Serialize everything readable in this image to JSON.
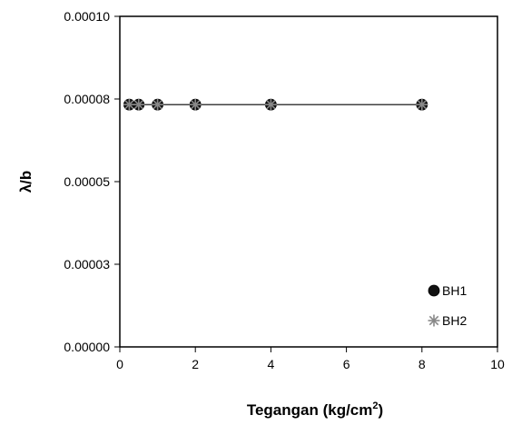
{
  "chart_data": {
    "type": "scatter",
    "title": "",
    "xlabel_main": "Tegangan (kg/cm",
    "xlabel_sup": "2",
    "xlabel_end": ")",
    "ylabel": "λ/b",
    "xlim": [
      0,
      10
    ],
    "ylim": [
      0,
      0.0001
    ],
    "x_ticks": [
      "0",
      "2",
      "4",
      "6",
      "8",
      "10"
    ],
    "y_ticks": [
      "0.00000",
      "0.00003",
      "0.00005",
      "0.00008",
      "0.00010"
    ],
    "grid": false,
    "legend_position": "bottom-right",
    "series": [
      {
        "name": "BH1",
        "marker": "circle",
        "color": "#111111",
        "line": true,
        "x": [
          0.25,
          0.5,
          1,
          2,
          4,
          8
        ],
        "y": [
          7.33e-05,
          7.33e-05,
          7.33e-05,
          7.33e-05,
          7.33e-05,
          7.33e-05
        ]
      },
      {
        "name": "BH2",
        "marker": "asterisk",
        "color": "#888888",
        "line": false,
        "x": [
          0.25,
          0.5,
          1,
          2,
          4,
          8
        ],
        "y": [
          7.33e-05,
          7.33e-05,
          7.33e-05,
          7.33e-05,
          7.33e-05,
          7.33e-05
        ]
      }
    ]
  }
}
